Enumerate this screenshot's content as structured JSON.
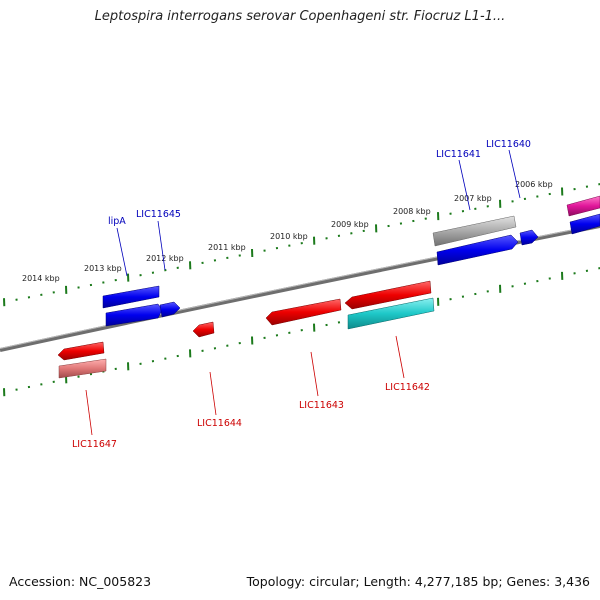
{
  "title": "Leptospira interrogans serovar Copenhageni str. Fiocruz L1-1...",
  "footer": {
    "accession": "Accession: NC_005823",
    "summary": "Topology: circular; Length: 4,277,185 bp; Genes: 3,436"
  },
  "colors": {
    "backbone": "#7a7a7a",
    "tick": "#1c7a1c",
    "forward_gene": "#0000ee",
    "reverse_gene": "#ee0000",
    "label_top": "#0000bb",
    "label_bottom": "#cc0000",
    "teal": "#1ec8c8",
    "gray_gene": "#a0a0a0",
    "magenta": "#e0169a",
    "pink": "#e07878"
  },
  "scale_labels": [
    "2014 kbp",
    "2013 kbp",
    "2012 kbp",
    "2011 kbp",
    "2010 kbp",
    "2009 kbp",
    "2008 kbp",
    "2007 kbp",
    "2006 kbp"
  ],
  "top_labels": [
    "lipA",
    "LIC11645",
    "LIC11641",
    "LIC11640"
  ],
  "bottom_labels": [
    "LIC11647",
    "LIC11644",
    "LIC11643",
    "LIC11642"
  ]
}
